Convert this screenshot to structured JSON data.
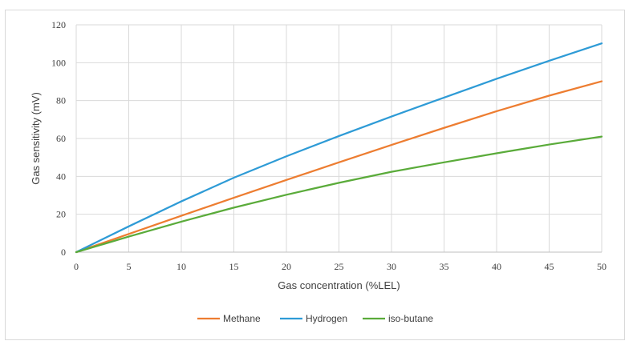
{
  "chart_data": {
    "type": "line",
    "title": "",
    "xlabel": "Gas concentration (%LEL)",
    "ylabel": "Gas sensitivity (mV)",
    "xlim": [
      0,
      50
    ],
    "ylim": [
      0,
      120
    ],
    "xticks": [
      "0",
      "5",
      "10",
      "15",
      "20",
      "25",
      "30",
      "35",
      "40",
      "45",
      "50"
    ],
    "yticks": [
      "0",
      "20",
      "40",
      "60",
      "80",
      "100",
      "120"
    ],
    "grid": true,
    "legend_position": "bottom",
    "x": [
      0,
      5,
      10,
      15,
      20,
      25,
      30,
      35,
      40,
      45,
      50
    ],
    "series": [
      {
        "name": "Methane",
        "color": "#ed7d31",
        "values": [
          0,
          9.6,
          19.2,
          28.7,
          38.1,
          47.4,
          56.6,
          65.6,
          74.4,
          82.6,
          90.2
        ]
      },
      {
        "name": "Hydrogen",
        "color": "#2e9bd6",
        "values": [
          0,
          13.6,
          26.8,
          39.3,
          50.6,
          61.3,
          71.6,
          81.6,
          91.5,
          101,
          110.2
        ]
      },
      {
        "name": "iso-butane",
        "color": "#5aab3a",
        "values": [
          0,
          8.2,
          16.1,
          23.5,
          30.3,
          36.6,
          42.4,
          47.4,
          52.2,
          56.8,
          61
        ]
      }
    ]
  }
}
